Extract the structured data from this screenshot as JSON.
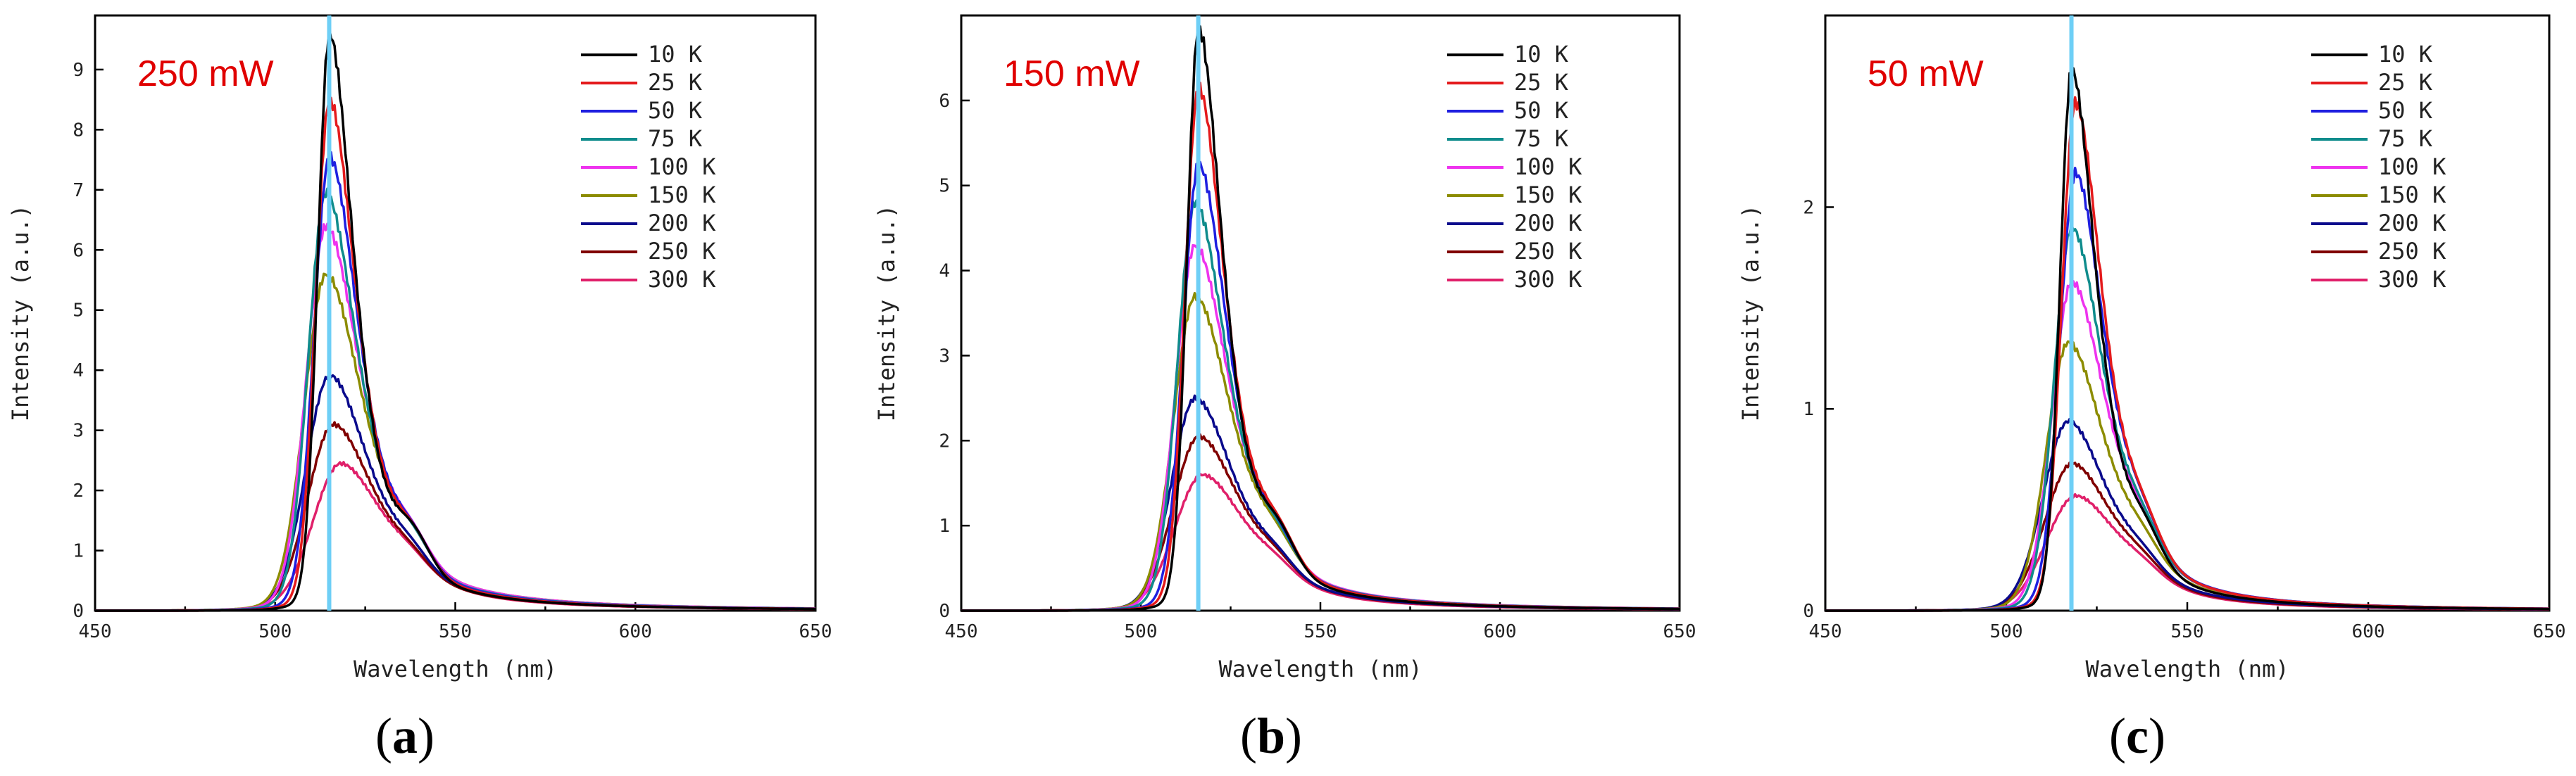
{
  "chart_data": [
    {
      "type": "line",
      "panel_label": "a",
      "power_label": "250 mW",
      "xlabel": "Wavelength (nm)",
      "ylabel": "Intensity (a.u.)",
      "xlim": [
        450,
        650
      ],
      "ylim": [
        0,
        9.9
      ],
      "xticks": [
        450,
        500,
        550,
        600,
        650
      ],
      "yticks": [
        0,
        1,
        2,
        3,
        4,
        5,
        6,
        7,
        8,
        9
      ],
      "reference_line_x": 515,
      "reference_line_color": "#6ecff6",
      "peak_wavelengths": [
        515,
        515,
        515,
        514,
        514,
        514,
        515,
        516,
        518
      ],
      "series": [
        {
          "name": "10 K",
          "color": "#000000",
          "peak": 9.6
        },
        {
          "name": "25 K",
          "color": "#e41a1c",
          "peak": 8.5
        },
        {
          "name": "50 K",
          "color": "#1f1fe0",
          "peak": 7.55
        },
        {
          "name": "75 K",
          "color": "#0f8c8c",
          "peak": 6.95
        },
        {
          "name": "100 K",
          "color": "#ee33ee",
          "peak": 6.4
        },
        {
          "name": "150 K",
          "color": "#8c8c00",
          "peak": 5.6
        },
        {
          "name": "200 K",
          "color": "#0a0a8c",
          "peak": 3.92
        },
        {
          "name": "250 K",
          "color": "#800000",
          "peak": 3.1
        },
        {
          "name": "300 K",
          "color": "#e0206a",
          "peak": 2.45
        }
      ]
    },
    {
      "type": "line",
      "panel_label": "b",
      "power_label": "150 mW",
      "xlabel": "Wavelength (nm)",
      "ylabel": "Intensity (a.u.)",
      "xlim": [
        450,
        650
      ],
      "ylim": [
        0,
        7.0
      ],
      "xticks": [
        450,
        500,
        550,
        600,
        650
      ],
      "yticks": [
        0,
        1,
        2,
        3,
        4,
        5,
        6
      ],
      "reference_line_x": 516,
      "reference_line_color": "#6ecff6",
      "peak_wavelengths": [
        516,
        516,
        516,
        515,
        515,
        515,
        515,
        516,
        517
      ],
      "series": [
        {
          "name": "10 K",
          "color": "#000000",
          "peak": 6.85
        },
        {
          "name": "25 K",
          "color": "#e41a1c",
          "peak": 6.15
        },
        {
          "name": "50 K",
          "color": "#1f1fe0",
          "peak": 5.25
        },
        {
          "name": "75 K",
          "color": "#0f8c8c",
          "peak": 4.8
        },
        {
          "name": "100 K",
          "color": "#ee33ee",
          "peak": 4.3
        },
        {
          "name": "150 K",
          "color": "#8c8c00",
          "peak": 3.7
        },
        {
          "name": "200 K",
          "color": "#0a0a8c",
          "peak": 2.5
        },
        {
          "name": "250 K",
          "color": "#800000",
          "peak": 2.05
        },
        {
          "name": "300 K",
          "color": "#e0206a",
          "peak": 1.6
        }
      ]
    },
    {
      "type": "line",
      "panel_label": "c",
      "power_label": "50 mW",
      "xlabel": "Wavelength (nm)",
      "ylabel": "Intensity (a.u.)",
      "xlim": [
        450,
        650
      ],
      "ylim": [
        0,
        2.95
      ],
      "xticks": [
        450,
        500,
        550,
        600,
        650
      ],
      "yticks": [
        0,
        1,
        2
      ],
      "reference_line_x": 518,
      "reference_line_color": "#6ecff6",
      "peak_wavelengths": [
        518,
        519,
        519,
        518,
        518,
        517,
        517,
        518,
        519
      ],
      "series": [
        {
          "name": "10 K",
          "color": "#000000",
          "peak": 2.68
        },
        {
          "name": "25 K",
          "color": "#e41a1c",
          "peak": 2.52
        },
        {
          "name": "50 K",
          "color": "#1f1fe0",
          "peak": 2.17
        },
        {
          "name": "75 K",
          "color": "#0f8c8c",
          "peak": 1.9
        },
        {
          "name": "100 K",
          "color": "#ee33ee",
          "peak": 1.63
        },
        {
          "name": "150 K",
          "color": "#8c8c00",
          "peak": 1.33
        },
        {
          "name": "200 K",
          "color": "#0a0a8c",
          "peak": 0.94
        },
        {
          "name": "250 K",
          "color": "#800000",
          "peak": 0.73
        },
        {
          "name": "300 K",
          "color": "#e0206a",
          "peak": 0.57
        }
      ]
    }
  ]
}
